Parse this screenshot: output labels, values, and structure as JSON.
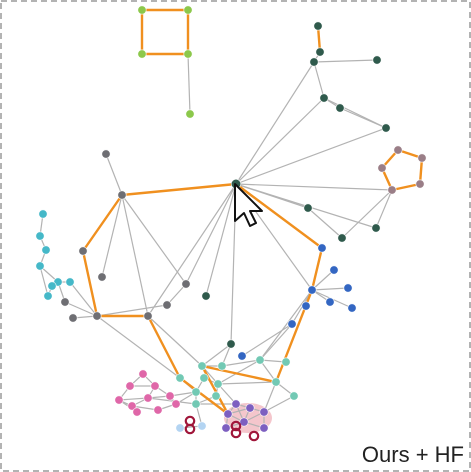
{
  "caption": "Ours + HF",
  "colors": {
    "highlight_path": "#f0901f",
    "edge": "#b3b3b3",
    "frame": "#9a9a9a",
    "focus_halo": "#f4c6cc",
    "ring": "#a0163a",
    "clusters": {
      "green": "#8cc84b",
      "dark_teal": "#2f5a4c",
      "gray": "#6e6e73",
      "mauve": "#9a7e87",
      "cyan": "#45b8c8",
      "blue": "#3366c2",
      "mint": "#72c9b4",
      "pink": "#df67a8",
      "purple": "#7d5fc0",
      "light_blue": "#b3d4f2"
    }
  },
  "cursor": "arrow-cursor-icon"
}
